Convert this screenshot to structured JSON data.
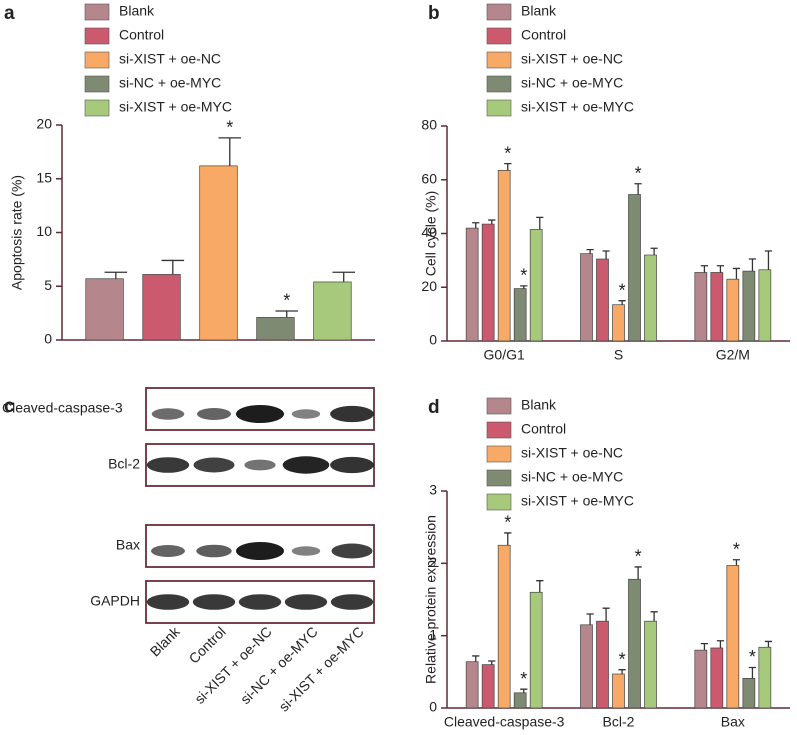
{
  "chart_data": [
    {
      "type": "bar",
      "panel": "a",
      "ylabel": "Apoptosis rate (%)",
      "ylim": [
        0,
        20
      ],
      "yticks": [
        0,
        5,
        10,
        15,
        20
      ],
      "legend": "top",
      "categories": [
        null
      ],
      "series": [
        {
          "name": "Blank",
          "color": "#b5878d",
          "values": [
            5.7
          ],
          "errors": [
            0.6
          ]
        },
        {
          "name": "Control",
          "color": "#cc5a6e",
          "values": [
            6.1
          ],
          "errors": [
            1.3
          ]
        },
        {
          "name": "si-XIST + oe-NC",
          "color": "#f8a965",
          "values": [
            16.2
          ],
          "errors": [
            2.6
          ]
        },
        {
          "name": "si-NC + oe-MYC",
          "color": "#7f8a72",
          "values": [
            2.1
          ],
          "errors": [
            0.6
          ]
        },
        {
          "name": "si-XIST + oe-MYC",
          "color": "#a7c97c",
          "values": [
            5.4
          ],
          "errors": [
            0.9
          ]
        }
      ],
      "annotations": [
        {
          "text": "*",
          "series": 2,
          "category": 0
        },
        {
          "text": "*",
          "series": 3,
          "category": 0
        }
      ]
    },
    {
      "type": "bar",
      "panel": "b",
      "ylabel": "Cell cycle (%)",
      "ylim": [
        0,
        80
      ],
      "yticks": [
        0,
        20,
        40,
        60,
        80
      ],
      "legend": "top",
      "categories": [
        "G0/G1",
        "S",
        "G2/M"
      ],
      "series": [
        {
          "name": "Blank",
          "color": "#b5878d",
          "values": [
            42,
            32.5,
            25.5
          ],
          "errors": [
            2,
            1.5,
            2.5
          ]
        },
        {
          "name": "Control",
          "color": "#cc5a6e",
          "values": [
            43.5,
            30.5,
            25.5
          ],
          "errors": [
            1.5,
            3,
            2.5
          ]
        },
        {
          "name": "si-XIST + oe-NC",
          "color": "#f8a965",
          "values": [
            63.5,
            13.5,
            23
          ],
          "errors": [
            2.5,
            1.5,
            4
          ]
        },
        {
          "name": "si-NC + oe-MYC",
          "color": "#7f8a72",
          "values": [
            19.5,
            54.5,
            26
          ],
          "errors": [
            1,
            4,
            4.5
          ]
        },
        {
          "name": "si-XIST + oe-MYC",
          "color": "#a7c97c",
          "values": [
            41.5,
            32,
            26.5
          ],
          "errors": [
            4.5,
            2.5,
            7
          ]
        }
      ],
      "annotations": [
        {
          "text": "*",
          "series": 2,
          "category": 0
        },
        {
          "text": "*",
          "series": 2,
          "category": 1
        },
        {
          "text": "*",
          "series": 3,
          "category": 0
        },
        {
          "text": "*",
          "series": 3,
          "category": 1
        }
      ]
    },
    {
      "type": "bar",
      "panel": "d",
      "ylabel": "Relative protein expression",
      "ylim": [
        0,
        3
      ],
      "yticks": [
        0,
        1,
        2,
        3
      ],
      "legend": "top",
      "categories": [
        "Cleaved-caspase-3",
        "Bcl-2",
        "Bax"
      ],
      "series": [
        {
          "name": "Blank",
          "color": "#b5878d",
          "values": [
            0.64,
            1.15,
            0.8
          ],
          "errors": [
            0.08,
            0.15,
            0.09
          ]
        },
        {
          "name": "Control",
          "color": "#cc5a6e",
          "values": [
            0.6,
            1.2,
            0.83
          ],
          "errors": [
            0.05,
            0.18,
            0.1
          ]
        },
        {
          "name": "si-XIST + oe-NC",
          "color": "#f8a965",
          "values": [
            2.25,
            0.47,
            1.97
          ],
          "errors": [
            0.17,
            0.06,
            0.08
          ]
        },
        {
          "name": "si-NC + oe-MYC",
          "color": "#7f8a72",
          "values": [
            0.21,
            1.78,
            0.41
          ],
          "errors": [
            0.05,
            0.17,
            0.15
          ]
        },
        {
          "name": "si-XIST + oe-MYC",
          "color": "#a7c97c",
          "values": [
            1.6,
            1.2,
            0.84
          ],
          "errors": [
            0.16,
            0.13,
            0.08
          ]
        }
      ],
      "annotations": [
        {
          "text": "*",
          "series": 2,
          "category": 0
        },
        {
          "text": "*",
          "series": 2,
          "category": 1
        },
        {
          "text": "*",
          "series": 2,
          "category": 2
        },
        {
          "text": "*",
          "series": 3,
          "category": 0
        },
        {
          "text": "*",
          "series": 3,
          "category": 1
        },
        {
          "text": "*",
          "series": 3,
          "category": 2
        }
      ]
    }
  ],
  "blot": {
    "panel": "c",
    "rows": [
      "Cleaved-caspase-3",
      "Bcl-2",
      "Bax",
      "GAPDH"
    ],
    "lanes": [
      "Blank",
      "Control",
      "si-XIST + oe-NC",
      "si-NC + oe-MYC",
      "si-XIST + oe-MYC"
    ]
  }
}
